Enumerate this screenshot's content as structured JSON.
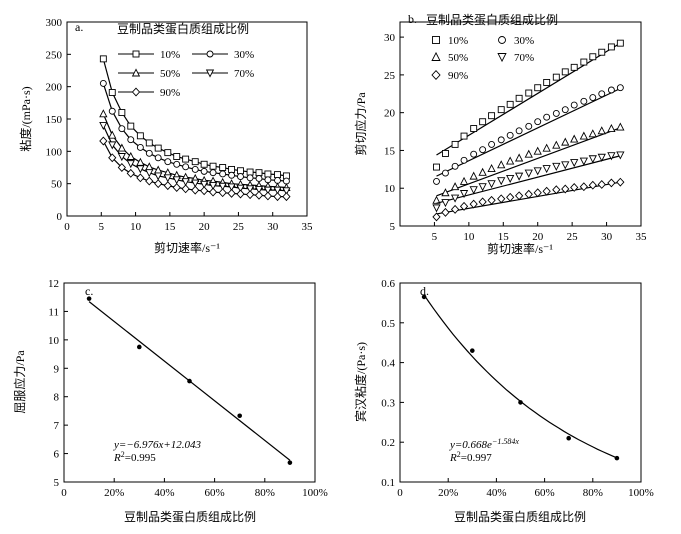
{
  "chart_data": [
    {
      "panel": "a.",
      "type": "line",
      "legend_title": "豆制品类蛋白质组成比例",
      "xlabel": "剪切速率/s⁻¹",
      "ylabel": "粘度/(mPa·s)",
      "xlim": [
        0,
        35
      ],
      "ylim": [
        0,
        300
      ],
      "xticks": [
        "0",
        "5",
        "10",
        "15",
        "20",
        "25",
        "30",
        "35"
      ],
      "yticks": [
        "0",
        "50",
        "100",
        "150",
        "200",
        "250",
        "300"
      ],
      "series": [
        {
          "name": "10%",
          "marker": "square",
          "x": [
            5.3,
            6.6,
            8,
            9.3,
            10.7,
            12,
            13.3,
            14.7,
            16,
            17.3,
            18.7,
            20,
            21.3,
            22.7,
            24,
            25.3,
            26.7,
            28,
            29.3,
            30.7,
            32
          ],
          "values": [
            243,
            191,
            160,
            139,
            124,
            113,
            105,
            98,
            92,
            88,
            84,
            80,
            77,
            75,
            72,
            70,
            68,
            67,
            65,
            64,
            62
          ]
        },
        {
          "name": "30%",
          "marker": "circle",
          "x": [
            5.3,
            6.6,
            8,
            9.3,
            10.7,
            12,
            13.3,
            14.7,
            16,
            17.3,
            18.7,
            20,
            21.3,
            22.7,
            24,
            25.3,
            26.7,
            28,
            29.3,
            30.7,
            32
          ],
          "values": [
            205,
            162,
            135,
            118,
            106,
            97,
            90,
            84,
            80,
            76,
            72,
            69,
            67,
            65,
            63,
            61,
            59,
            58,
            56,
            55,
            54
          ]
        },
        {
          "name": "50%",
          "marker": "triangle-up",
          "x": [
            5.3,
            6.6,
            8,
            9.3,
            10.7,
            12,
            13.3,
            14.7,
            16,
            17.3,
            18.7,
            20,
            21.3,
            22.7,
            24,
            25.3,
            26.7,
            28,
            29.3,
            30.7,
            32
          ],
          "values": [
            158,
            125,
            105,
            92,
            83,
            76,
            71,
            67,
            63,
            60,
            58,
            55,
            54,
            52,
            50,
            49,
            48,
            47,
            46,
            45,
            44
          ]
        },
        {
          "name": "70%",
          "marker": "triangle-down",
          "x": [
            5.3,
            6.6,
            8,
            9.3,
            10.7,
            12,
            13.3,
            14.7,
            16,
            17.3,
            18.7,
            20,
            21.3,
            22.7,
            24,
            25.3,
            26.7,
            28,
            29.3,
            30.7,
            32
          ],
          "values": [
            140,
            110,
            92,
            81,
            73,
            67,
            62,
            59,
            56,
            53,
            51,
            49,
            47,
            46,
            45,
            43,
            42,
            41,
            40,
            40,
            39
          ]
        },
        {
          "name": "90%",
          "marker": "diamond",
          "x": [
            5.3,
            6.6,
            8,
            9.3,
            10.7,
            12,
            13.3,
            14.7,
            16,
            17.3,
            18.7,
            20,
            21.3,
            22.7,
            24,
            25.3,
            26.7,
            28,
            29.3,
            30.7,
            32
          ],
          "values": [
            116,
            90,
            75,
            66,
            59,
            54,
            50,
            47,
            44,
            42,
            40,
            39,
            37,
            36,
            35,
            34,
            33,
            32,
            31,
            30,
            30
          ]
        }
      ]
    },
    {
      "panel": "b.",
      "type": "scatter",
      "legend_title": "豆制品类蛋白质组成比例",
      "xlabel": "剪切速率/s⁻¹",
      "ylabel": "剪切应力/Pa",
      "xlim": [
        0,
        35
      ],
      "ylim": [
        5,
        32
      ],
      "xticks": [
        "5",
        "10",
        "15",
        "20",
        "25",
        "30",
        "35"
      ],
      "yticks": [
        "5",
        "10",
        "15",
        "20",
        "25",
        "30"
      ],
      "series": [
        {
          "name": "10%",
          "marker": "square",
          "x": [
            5.3,
            6.6,
            8,
            9.3,
            10.7,
            12,
            13.3,
            14.7,
            16,
            17.3,
            18.7,
            20,
            21.3,
            22.7,
            24,
            25.3,
            26.7,
            28,
            29.3,
            30.7,
            32
          ],
          "values": [
            12.8,
            14.6,
            15.8,
            16.9,
            17.9,
            18.8,
            19.6,
            20.4,
            21.1,
            21.9,
            22.6,
            23.3,
            24,
            24.7,
            25.4,
            26,
            26.7,
            27.4,
            28,
            28.7,
            29.2
          ],
          "fit": [
            14.4,
            29.2
          ]
        },
        {
          "name": "30%",
          "marker": "circle",
          "x": [
            5.3,
            6.6,
            8,
            9.3,
            10.7,
            12,
            13.3,
            14.7,
            16,
            17.3,
            18.7,
            20,
            21.3,
            22.7,
            24,
            25.3,
            26.7,
            28,
            29.3,
            30.7,
            32
          ],
          "values": [
            10.9,
            12,
            12.9,
            13.7,
            14.5,
            15.1,
            15.8,
            16.4,
            17,
            17.6,
            18.2,
            18.8,
            19.4,
            19.9,
            20.4,
            21,
            21.5,
            22,
            22.5,
            23,
            23.3
          ],
          "fit": [
            11.6,
            23.2
          ]
        },
        {
          "name": "50%",
          "marker": "triangle-up",
          "x": [
            5.3,
            6.6,
            8,
            9.3,
            10.7,
            12,
            13.3,
            14.7,
            16,
            17.3,
            18.7,
            20,
            21.3,
            22.7,
            24,
            25.3,
            26.7,
            28,
            29.3,
            30.7,
            32
          ],
          "values": [
            8.4,
            9.4,
            10.2,
            10.9,
            11.6,
            12.1,
            12.6,
            13.1,
            13.6,
            14,
            14.5,
            14.9,
            15.3,
            15.7,
            16.1,
            16.5,
            16.9,
            17.2,
            17.6,
            17.9,
            18.1
          ],
          "fit": [
            9,
            18
          ]
        },
        {
          "name": "70%",
          "marker": "triangle-down",
          "x": [
            5.3,
            6.6,
            8,
            9.3,
            10.7,
            12,
            13.3,
            14.7,
            16,
            17.3,
            18.7,
            20,
            21.3,
            22.7,
            24,
            25.3,
            26.7,
            28,
            29.3,
            30.7,
            32
          ],
          "values": [
            7.4,
            8.1,
            8.7,
            9.3,
            9.8,
            10.2,
            10.6,
            11,
            11.3,
            11.6,
            12,
            12.3,
            12.6,
            12.9,
            13.1,
            13.4,
            13.6,
            13.9,
            14.1,
            14.3,
            14.4
          ],
          "fit": [
            8,
            14.3
          ]
        },
        {
          "name": "90%",
          "marker": "diamond",
          "x": [
            5.3,
            6.6,
            8,
            9.3,
            10.7,
            12,
            13.3,
            14.7,
            16,
            17.3,
            18.7,
            20,
            21.3,
            22.7,
            24,
            25.3,
            26.7,
            28,
            29.3,
            30.7,
            32
          ],
          "values": [
            6.2,
            6.8,
            7.2,
            7.6,
            7.9,
            8.2,
            8.4,
            8.6,
            8.8,
            9,
            9.2,
            9.4,
            9.6,
            9.8,
            9.9,
            10.1,
            10.2,
            10.4,
            10.5,
            10.7,
            10.8
          ],
          "fit": [
            6.6,
            10.8
          ]
        }
      ]
    },
    {
      "panel": "c.",
      "type": "scatter",
      "xlabel": "豆制品类蛋白质组成比例",
      "ylabel": "屈服应力/Pa",
      "xlim": [
        0,
        100
      ],
      "ylim": [
        5,
        12
      ],
      "xticks": [
        "0",
        "20%",
        "40%",
        "60%",
        "80%",
        "100%"
      ],
      "yticks": [
        "5",
        "6",
        "7",
        "8",
        "9",
        "10",
        "11",
        "12"
      ],
      "x": [
        10,
        30,
        50,
        70,
        90
      ],
      "values": [
        11.45,
        9.75,
        8.55,
        7.33,
        5.68
      ],
      "fit": {
        "type": "linear",
        "slope": -6.976,
        "intercept": 12.043
      },
      "equation": "y=−6.976x+12.043",
      "r2_label": "R",
      "r2_value": "=0.995"
    },
    {
      "panel": "d.",
      "type": "scatter",
      "xlabel": "豆制品类蛋白质组成比例",
      "ylabel": "宾汉粘度/(Pa·s)",
      "xlim": [
        0,
        100
      ],
      "ylim": [
        0.1,
        0.6
      ],
      "xticks": [
        "0",
        "20%",
        "40%",
        "60%",
        "80%",
        "100%"
      ],
      "yticks": [
        "0.1",
        "0.2",
        "0.3",
        "0.4",
        "0.5",
        "0.6"
      ],
      "x": [
        10,
        30,
        50,
        70,
        90
      ],
      "values": [
        0.565,
        0.43,
        0.3,
        0.21,
        0.16
      ],
      "fit": {
        "type": "exponential",
        "a": 0.668,
        "b": -1.584
      },
      "equation_prefix": "y=0.668e",
      "equation_exp": "−1.584x",
      "r2_label": "R",
      "r2_value": "=0.997"
    }
  ]
}
